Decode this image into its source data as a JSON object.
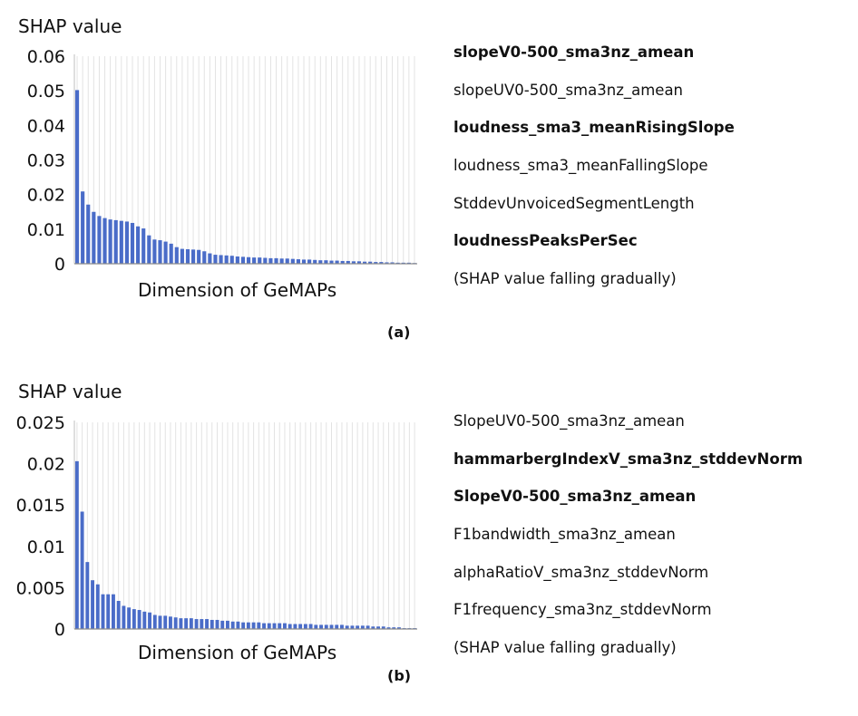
{
  "chart_data": [
    {
      "type": "bar",
      "ylabel": "SHAP value",
      "xlabel": "Dimension of GeMAPs",
      "ylim": [
        0,
        0.06
      ],
      "yticks": [
        "0",
        "0.01",
        "0.02",
        "0.03",
        "0.04",
        "0.05",
        "0.06"
      ],
      "grid": true,
      "caption": "(a)",
      "bar_color": "#4a6cc8",
      "values": [
        0.0502,
        0.0209,
        0.0171,
        0.015,
        0.0138,
        0.0132,
        0.0128,
        0.0126,
        0.0124,
        0.0122,
        0.0118,
        0.0108,
        0.0102,
        0.0082,
        0.007,
        0.0068,
        0.0064,
        0.0058,
        0.0048,
        0.0043,
        0.0042,
        0.0041,
        0.004,
        0.0036,
        0.003,
        0.0026,
        0.0025,
        0.0024,
        0.0023,
        0.0021,
        0.002,
        0.0019,
        0.0018,
        0.0018,
        0.0017,
        0.0016,
        0.0016,
        0.0015,
        0.0015,
        0.0014,
        0.0013,
        0.0012,
        0.0012,
        0.0011,
        0.001,
        0.001,
        0.0009,
        0.0009,
        0.0008,
        0.0008,
        0.0007,
        0.0007,
        0.0006,
        0.0006,
        0.0005,
        0.0005,
        0.0004,
        0.0004,
        0.0003,
        0.0003,
        0.0003,
        0.0002
      ],
      "features": [
        {
          "label": "slopeV0-500_sma3nz_amean",
          "bold": true
        },
        {
          "label": "slopeUV0-500_sma3nz_amean",
          "bold": false
        },
        {
          "label": "loudness_sma3_meanRisingSlope",
          "bold": true
        },
        {
          "label": "loudness_sma3_meanFallingSlope",
          "bold": false
        },
        {
          "label": "StddevUnvoicedSegmentLength",
          "bold": false
        },
        {
          "label": "loudnessPeaksPerSec",
          "bold": true
        },
        {
          "label": "(SHAP value falling gradually)",
          "bold": false
        }
      ]
    },
    {
      "type": "bar",
      "ylabel": "SHAP value",
      "xlabel": "Dimension of GeMAPs",
      "ylim": [
        0,
        0.025
      ],
      "yticks": [
        "0",
        "0.005",
        "0.01",
        "0.015",
        "0.02",
        "0.025"
      ],
      "grid": true,
      "caption": "(b)",
      "bar_color": "#4a6cc8",
      "values": [
        0.0203,
        0.0142,
        0.0081,
        0.0059,
        0.0054,
        0.0042,
        0.0042,
        0.0042,
        0.0034,
        0.0028,
        0.0026,
        0.0024,
        0.0023,
        0.0021,
        0.002,
        0.0017,
        0.0016,
        0.0016,
        0.0015,
        0.0014,
        0.0013,
        0.0013,
        0.0013,
        0.0012,
        0.0012,
        0.0012,
        0.0011,
        0.0011,
        0.001,
        0.001,
        0.0009,
        0.0009,
        0.0008,
        0.0008,
        0.0008,
        0.0008,
        0.0007,
        0.0007,
        0.0007,
        0.0007,
        0.0007,
        0.0006,
        0.0006,
        0.0006,
        0.0006,
        0.0006,
        0.0005,
        0.0005,
        0.0005,
        0.0005,
        0.0005,
        0.0005,
        0.0004,
        0.0004,
        0.0004,
        0.0004,
        0.0004,
        0.0003,
        0.0003,
        0.0003,
        0.0002,
        0.0002,
        0.0002,
        0.0001,
        0.0001,
        0.0001
      ],
      "features": [
        {
          "label": "SlopeUV0-500_sma3nz_amean",
          "bold": false
        },
        {
          "label": "hammarbergIndexV_sma3nz_stddevNorm",
          "bold": true
        },
        {
          "label": "SlopeV0-500_sma3nz_amean",
          "bold": true
        },
        {
          "label": "F1bandwidth_sma3nz_amean",
          "bold": false
        },
        {
          "label": "alphaRatioV_sma3nz_stddevNorm",
          "bold": false
        },
        {
          "label": "F1frequency_sma3nz_stddevNorm",
          "bold": false
        },
        {
          "label": "(SHAP value falling gradually)",
          "bold": false
        }
      ]
    }
  ]
}
